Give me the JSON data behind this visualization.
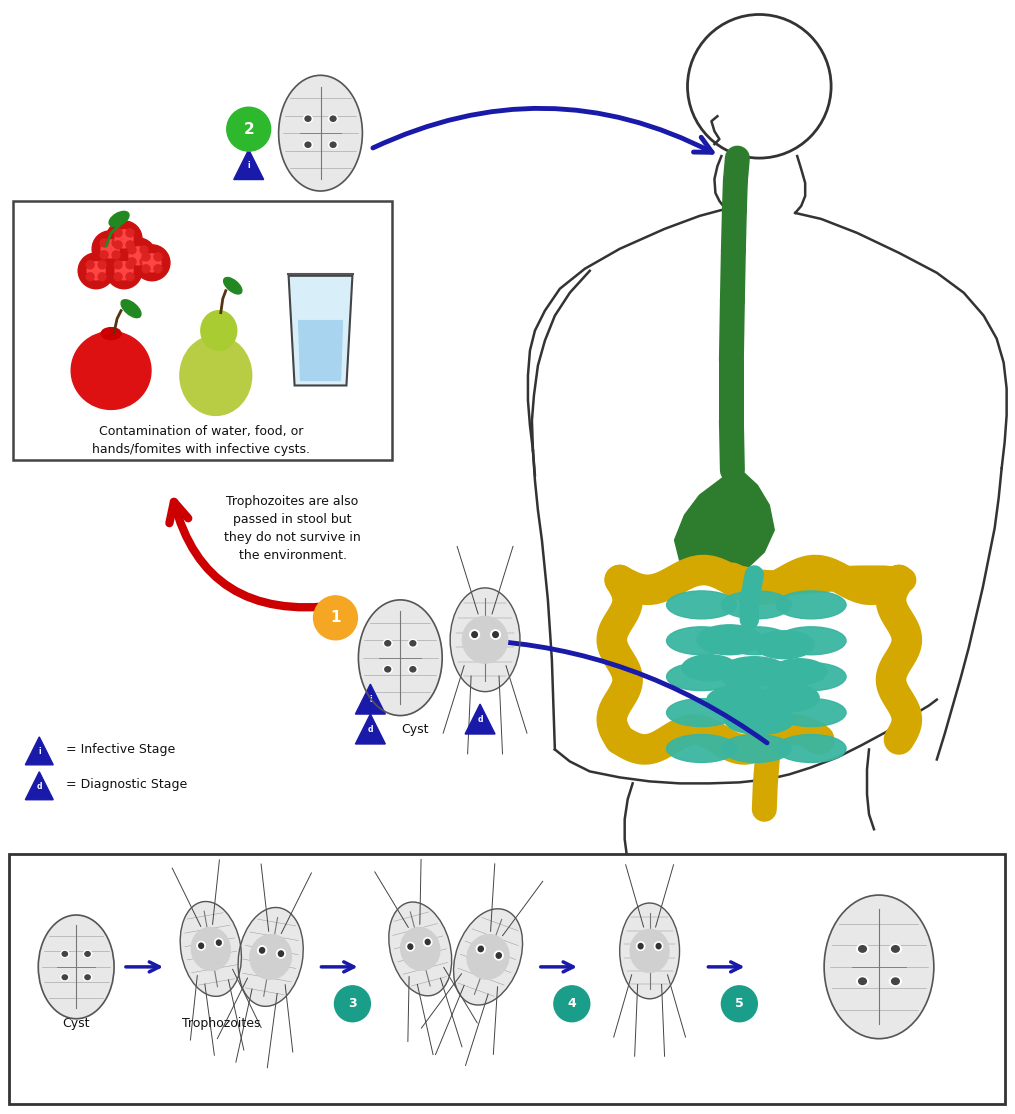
{
  "background_color": "#ffffff",
  "fig_width": 10.15,
  "fig_height": 11.14,
  "arrow_blue_color": "#1a1aaa",
  "arrow_red_color": "#cc0000",
  "food_box_text": "Contamination of water, food, or\nhands/fomites with infective cysts.",
  "trophozoites_note": "Trophozoites are also\npassed in stool but\nthey do not survive in\nthe environment.",
  "numbered_circles": [
    {
      "num": "1",
      "color": "#f5a623"
    },
    {
      "num": "2",
      "color": "#2db82d"
    },
    {
      "num": "3",
      "color": "#1a9e8a"
    },
    {
      "num": "4",
      "color": "#1a9e8a"
    },
    {
      "num": "5",
      "color": "#1a9e8a"
    }
  ],
  "esophagus_color": "#2e7d2e",
  "stomach_color": "#2e7d2e",
  "small_intestine_color": "#3ab5a0",
  "large_intestine_color": "#d4a800",
  "body_outline_color": "#333333"
}
